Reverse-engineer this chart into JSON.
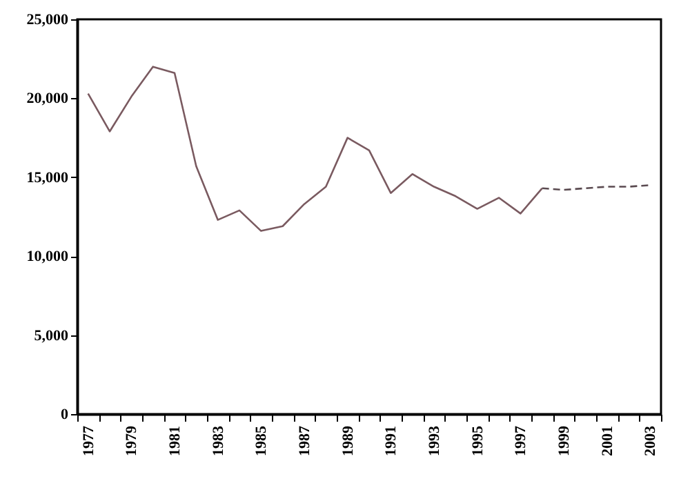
{
  "chart_data": {
    "type": "line",
    "categories": [
      "1977",
      null,
      "1979",
      null,
      "1981",
      null,
      "1983",
      null,
      "1985",
      null,
      "1987",
      null,
      "1989",
      null,
      "1991",
      null,
      "1993",
      null,
      "1995",
      null,
      "1997",
      null,
      "1999",
      null,
      "2001",
      null,
      "2003"
    ],
    "series": [
      {
        "color": "#7a5a60",
        "line_style": "solid",
        "values": [
          20300,
          17900,
          20100,
          22000,
          21600,
          15700,
          12300,
          12900,
          11600,
          11900,
          13300,
          14400,
          17500,
          16700,
          14000,
          15200,
          14400,
          13800,
          13000,
          13700,
          12700,
          14300,
          null,
          null,
          null,
          null,
          null
        ]
      },
      {
        "color": "#5a4a50",
        "line_style": "dashed",
        "values": [
          null,
          null,
          null,
          null,
          null,
          null,
          null,
          null,
          null,
          null,
          null,
          null,
          null,
          null,
          null,
          null,
          null,
          null,
          null,
          null,
          null,
          14300,
          14200,
          14300,
          14400,
          14400,
          14500
        ]
      }
    ],
    "ylim": [
      0,
      25000
    ],
    "yticks": [
      0,
      {
        "value": 5000,
        "label": "5,000"
      },
      {
        "value": 10000,
        "label": "10,000"
      },
      {
        "value": 15000,
        "label": "15,000"
      },
      {
        "value": 20000,
        "label": "20,000"
      },
      {
        "value": 25000,
        "label": "25,000"
      }
    ],
    "grid": false,
    "marker": "none"
  }
}
